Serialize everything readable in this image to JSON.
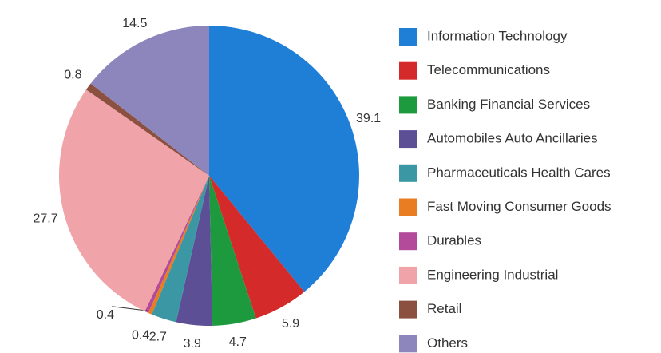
{
  "chart_data": {
    "type": "pie",
    "categories": [
      "Information Technology",
      "Telecommunications",
      "Banking Financial Services",
      "Automobiles Auto Ancillaries",
      "Pharmaceuticals Health Cares",
      "Fast Moving Consumer Goods",
      "Durables",
      "Engineering Industrial",
      "Retail",
      "Others"
    ],
    "values": [
      39.1,
      5.9,
      4.7,
      3.9,
      2.7,
      0.4,
      0.4,
      27.7,
      0.8,
      14.5
    ],
    "colors": [
      "#1f7ed6",
      "#d42a2a",
      "#1e9a3e",
      "#5c4f96",
      "#3a97a3",
      "#e87d22",
      "#b44a9a",
      "#f0a3a8",
      "#8b5040",
      "#8d86bd"
    ],
    "legend": "right"
  }
}
